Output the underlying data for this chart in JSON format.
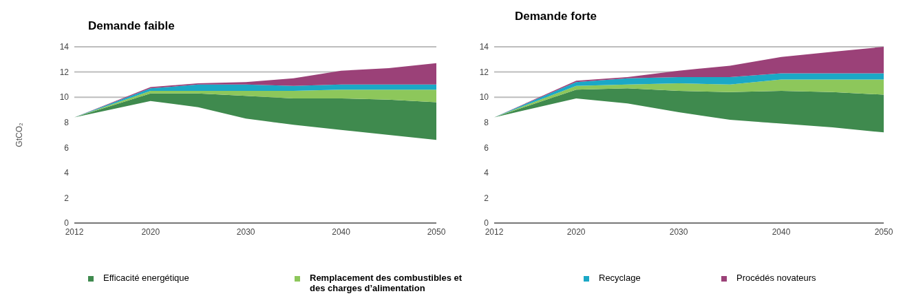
{
  "chart_data": [
    {
      "type": "area",
      "title": "Demande faible",
      "ylabel": "GtCO₂",
      "stacked": true,
      "x": [
        2012,
        2020,
        2025,
        2030,
        2035,
        2040,
        2045,
        2050
      ],
      "xlim": [
        2012,
        2050
      ],
      "xticks": [
        2012,
        2020,
        2030,
        2040,
        2050
      ],
      "ylim": [
        0,
        14
      ],
      "yticks": [
        0,
        2,
        4,
        6,
        8,
        10,
        12,
        14
      ],
      "grid": "y",
      "legend": "bottom",
      "series": [
        {
          "color": "#ffffff",
          "values": [
            8.4,
            9.7,
            9.2,
            8.3,
            7.8,
            7.4,
            7.0,
            6.6
          ]
        },
        {
          "name": "Efficacité energétique",
          "color": "#3f8a4e",
          "values": [
            0,
            0.6,
            1.1,
            1.8,
            2.1,
            2.5,
            2.8,
            3.0
          ]
        },
        {
          "name": "Remplacement des combustibles et des charges d’alimentation",
          "color": "#8dc75b",
          "values": [
            0,
            0.2,
            0.2,
            0.4,
            0.6,
            0.7,
            0.8,
            1.0
          ]
        },
        {
          "name": "Recyclage",
          "color": "#1ba8c6",
          "values": [
            0,
            0.2,
            0.5,
            0.5,
            0.4,
            0.4,
            0.4,
            0.4
          ]
        },
        {
          "name": "Procédés novateurs",
          "color": "#9b4178",
          "values": [
            0,
            0.1,
            0.1,
            0.2,
            0.6,
            1.1,
            1.3,
            1.7
          ]
        }
      ]
    },
    {
      "type": "area",
      "title": "Demande forte",
      "stacked": true,
      "x": [
        2012,
        2020,
        2025,
        2030,
        2035,
        2040,
        2045,
        2050
      ],
      "xlim": [
        2012,
        2050
      ],
      "xticks": [
        2012,
        2020,
        2030,
        2040,
        2050
      ],
      "ylim": [
        0,
        14
      ],
      "yticks": [
        0,
        2,
        4,
        6,
        8,
        10,
        12,
        14
      ],
      "grid": "y",
      "series": [
        {
          "color": "#ffffff",
          "values": [
            8.4,
            9.9,
            9.5,
            8.8,
            8.2,
            7.9,
            7.6,
            7.2
          ]
        },
        {
          "color": "#3f8a4e",
          "values": [
            0,
            0.7,
            1.2,
            1.7,
            2.2,
            2.6,
            2.8,
            3.0
          ]
        },
        {
          "color": "#8dc75b",
          "values": [
            0,
            0.3,
            0.3,
            0.6,
            0.6,
            0.9,
            1.0,
            1.2
          ]
        },
        {
          "color": "#1ba8c6",
          "values": [
            0,
            0.3,
            0.5,
            0.5,
            0.6,
            0.5,
            0.5,
            0.5
          ]
        },
        {
          "color": "#9b4178",
          "values": [
            0,
            0.1,
            0.1,
            0.5,
            0.9,
            1.3,
            1.7,
            2.1
          ]
        }
      ]
    }
  ]
}
